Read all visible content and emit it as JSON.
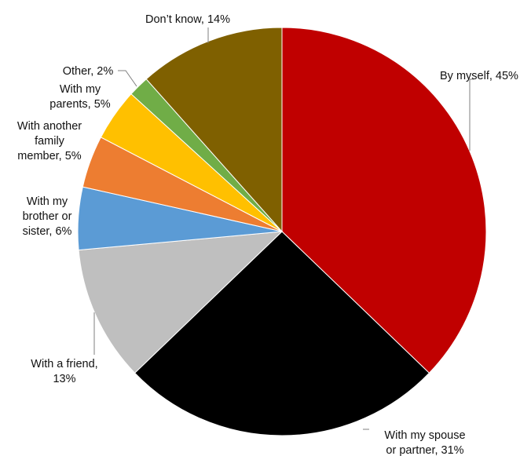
{
  "chart_data": {
    "type": "pie",
    "slices": [
      {
        "label": "By myself",
        "value": 45,
        "percent_label": "45%",
        "color": "#c00000"
      },
      {
        "label": "With my spouse or partner",
        "value": 31,
        "percent_label": "31%",
        "color": "#000000"
      },
      {
        "label": "With a friend",
        "value": 13,
        "percent_label": "13%",
        "color": "#bfbfbf"
      },
      {
        "label": "With my brother or sister",
        "value": 6,
        "percent_label": "6%",
        "color": "#5b9bd5"
      },
      {
        "label": "With another family member",
        "value": 5,
        "percent_label": "5%",
        "color": "#ed7d31"
      },
      {
        "label": "With my parents",
        "value": 5,
        "percent_label": "5%",
        "color": "#ffc000"
      },
      {
        "label": "Other",
        "value": 2,
        "percent_label": "2%",
        "color": "#70ad47"
      },
      {
        "label": "Don’t know",
        "value": 14,
        "percent_label": "14%",
        "color": "#7f6000"
      }
    ],
    "label_lines": [
      [
        "By myself, 45%"
      ],
      [
        "With my spouse",
        "or partner, 31%"
      ],
      [
        "With a friend,",
        "13%"
      ],
      [
        "With my",
        "brother or",
        "sister, 6%"
      ],
      [
        "With another",
        "family",
        "member, 5%"
      ],
      [
        "With my",
        "parents, 5%"
      ],
      [
        "Other, 2%"
      ],
      [
        "Don’t know, 14%"
      ]
    ],
    "start": "12 o'clock",
    "direction": "clockwise",
    "legend": "none"
  }
}
